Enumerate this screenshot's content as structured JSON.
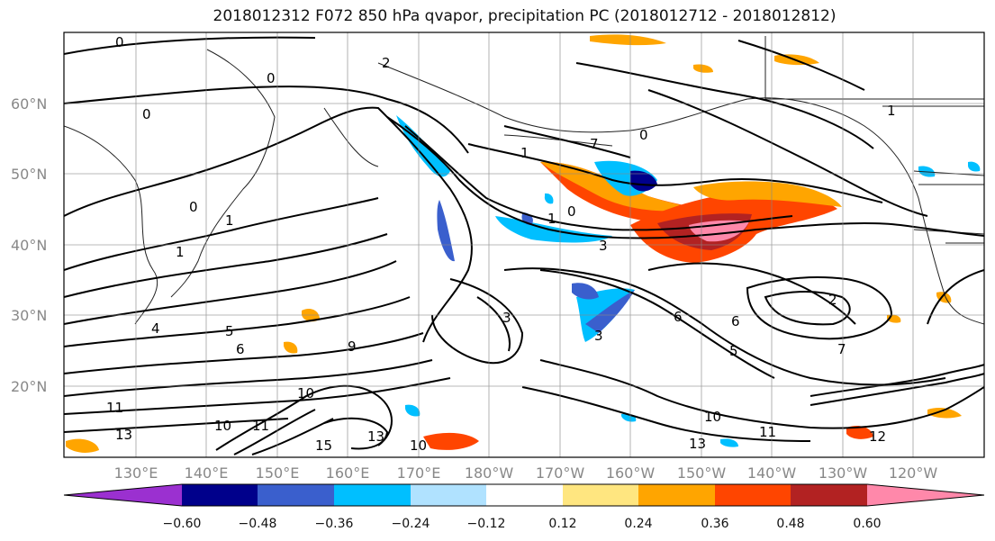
{
  "title": "2018012312 F072 850 hPa qvapor, precipitation PC (2018012712 - 2018012812)",
  "lat_labels": [
    "60°N",
    "50°N",
    "40°N",
    "30°N",
    "20°N"
  ],
  "lon_labels": [
    "130°E",
    "140°E",
    "150°E",
    "160°E",
    "170°E",
    "180°W",
    "170°W",
    "160°W",
    "150°W",
    "140°W",
    "130°W",
    "120°W"
  ],
  "contour_labels": [
    "0",
    "0",
    "2",
    "0",
    "0",
    "1",
    "1",
    "1",
    "7",
    "0",
    "0",
    "1",
    "1",
    "3",
    "3",
    "4",
    "5",
    "6",
    "9",
    "6",
    "6",
    "2",
    "7",
    "10",
    "11",
    "13",
    "10",
    "11",
    "15",
    "10",
    "13",
    "10",
    "11",
    "13",
    "12",
    "3",
    "5"
  ],
  "colorbar": {
    "ticks": [
      "−0.60",
      "−0.48",
      "−0.36",
      "−0.24",
      "−0.12",
      "0.12",
      "0.24",
      "0.36",
      "0.48",
      "0.60"
    ],
    "colors": [
      "#9b30d0",
      "#00008b",
      "#3a5fcd",
      "#00bfff",
      "#b0e2ff",
      "#ffffff",
      "#ffe680",
      "#ffa500",
      "#ff4500",
      "#b22222",
      "#ff88aa"
    ]
  }
}
